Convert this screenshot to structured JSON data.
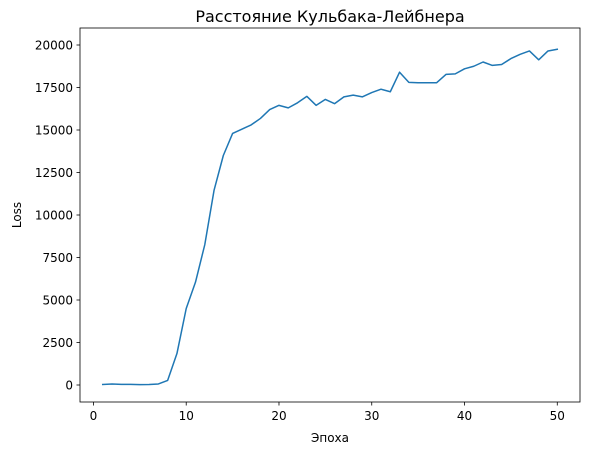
{
  "chart_data": {
    "type": "line",
    "title": "Расстояние Кульбака-Лейбнера",
    "xlabel": "Эпоха",
    "ylabel": "Loss",
    "xlim": [
      -1.45,
      52.45
    ],
    "ylim": [
      -1000,
      21000
    ],
    "xticks": [
      0,
      10,
      20,
      30,
      40,
      50
    ],
    "yticks": [
      0,
      2500,
      5000,
      7500,
      10000,
      12500,
      15000,
      17500,
      20000
    ],
    "grid": false,
    "series": [
      {
        "color": "#1f77b4",
        "x": [
          1,
          2,
          3,
          4,
          5,
          6,
          7,
          8,
          9,
          10,
          11,
          12,
          13,
          14,
          15,
          16,
          17,
          18,
          19,
          20,
          21,
          22,
          23,
          24,
          25,
          26,
          27,
          28,
          29,
          30,
          31,
          32,
          33,
          34,
          35,
          36,
          37,
          38,
          39,
          40,
          41,
          42,
          43,
          44,
          45,
          46,
          47,
          48,
          49,
          50
        ],
        "y": [
          30,
          60,
          40,
          40,
          20,
          30,
          60,
          270,
          1850,
          4500,
          6050,
          8250,
          11450,
          13500,
          14800,
          15050,
          15300,
          15680,
          16200,
          16450,
          16300,
          16600,
          16980,
          16450,
          16800,
          16550,
          16950,
          17050,
          16950,
          17200,
          17400,
          17250,
          18400,
          17800,
          17780,
          17780,
          17780,
          18270,
          18300,
          18600,
          18750,
          19000,
          18800,
          18850,
          19200,
          19450,
          19650,
          19130,
          19650,
          19750
        ]
      }
    ]
  }
}
